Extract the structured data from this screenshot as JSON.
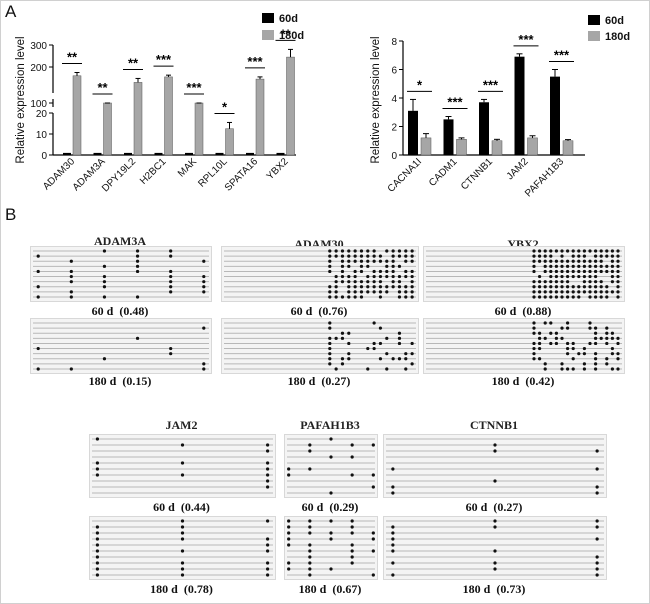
{
  "panel_labels": {
    "a": "A",
    "b": "B"
  },
  "colors": {
    "d60": "#000000",
    "d180": "#a6a6a6",
    "meth": "#111111",
    "line": "#b8b8b8"
  },
  "chart_data": [
    {
      "type": "bar",
      "ylabel": "Relative expression level",
      "ylim": [
        0,
        300
      ],
      "axis_break": {
        "lower": [
          0,
          20
        ],
        "middle": [
          100,
          100
        ],
        "upper": [
          100,
          300
        ]
      },
      "yticks": [
        "0",
        "10",
        "20",
        "100",
        "200",
        "300"
      ],
      "categories": [
        "ADAM30",
        "ADAM3A",
        "DPY19L2",
        "H2BC1",
        "MAK",
        "RPL10L",
        "SPATA16",
        "YBX2"
      ],
      "series": [
        {
          "name": "60d",
          "values": [
            1,
            1,
            1,
            1,
            1,
            1,
            1,
            1
          ]
        },
        {
          "name": "180d",
          "values": [
            160,
            60,
            130,
            155,
            90,
            12.5,
            145,
            245
          ]
        }
      ],
      "errors_180d": [
        15,
        8,
        18,
        8,
        8,
        3,
        10,
        35
      ],
      "significance": [
        "**",
        "**",
        "**",
        "***",
        "***",
        "*",
        "***",
        "**"
      ]
    },
    {
      "type": "bar",
      "ylabel": "Relative expression level",
      "ylim": [
        0,
        8
      ],
      "yticks": [
        "0",
        "2",
        "4",
        "6",
        "8"
      ],
      "categories": [
        "CACNA1I",
        "CADM1",
        "CTNNB1",
        "JAM2",
        "PAFAH1B3"
      ],
      "series": [
        {
          "name": "60d",
          "values": [
            3.1,
            2.5,
            3.7,
            6.9,
            5.5
          ]
        },
        {
          "name": "180d",
          "values": [
            1.2,
            1.1,
            1.0,
            1.2,
            1.0
          ]
        }
      ],
      "errors_60d": [
        0.8,
        0.2,
        0.2,
        0.2,
        0.5
      ],
      "errors_180d": [
        0.3,
        0.1,
        0.1,
        0.15,
        0.08
      ],
      "significance": [
        "*",
        "***",
        "***",
        "***",
        "***"
      ]
    }
  ],
  "bisulfite": [
    {
      "gene": "ADAM3A",
      "rows": [
        {
          "label": "60 d  (0.48)",
          "nrows": 10,
          "sites": 6,
          "methylation": 0.48
        },
        {
          "label": "180 d  (0.15)",
          "nrows": 10,
          "sites": 6,
          "methylation": 0.15
        }
      ]
    },
    {
      "gene": "ADAM30",
      "rows": [
        {
          "label": "60 d  (0.76)",
          "nrows": 10,
          "sites": 14,
          "methylation": 0.76
        },
        {
          "label": "180 d  (0.27)",
          "nrows": 10,
          "sites": 14,
          "methylation": 0.27
        }
      ]
    },
    {
      "gene": "YBX2",
      "rows": [
        {
          "label": "60 d  (0.88)",
          "nrows": 10,
          "sites": 16,
          "methylation": 0.88
        },
        {
          "label": "180 d  (0.42)",
          "nrows": 10,
          "sites": 16,
          "methylation": 0.42
        }
      ]
    },
    {
      "gene": "JAM2",
      "rows": [
        {
          "label": "60 d  (0.44)",
          "nrows": 10,
          "sites": 3,
          "methylation": 0.44
        },
        {
          "label": "180 d  (0.78)",
          "nrows": 10,
          "sites": 3,
          "methylation": 0.78
        }
      ]
    },
    {
      "gene": "PAFAH1B3",
      "rows": [
        {
          "label": "60 d  (0.29)",
          "nrows": 10,
          "sites": 5,
          "methylation": 0.29
        },
        {
          "label": "180 d  (0.67)",
          "nrows": 10,
          "sites": 5,
          "methylation": 0.67
        }
      ]
    },
    {
      "gene": "CTNNB1",
      "rows": [
        {
          "label": "60 d  (0.27)",
          "nrows": 10,
          "sites": 3,
          "methylation": 0.27
        },
        {
          "label": "180 d  (0.73)",
          "nrows": 10,
          "sites": 3,
          "methylation": 0.73
        }
      ]
    }
  ]
}
